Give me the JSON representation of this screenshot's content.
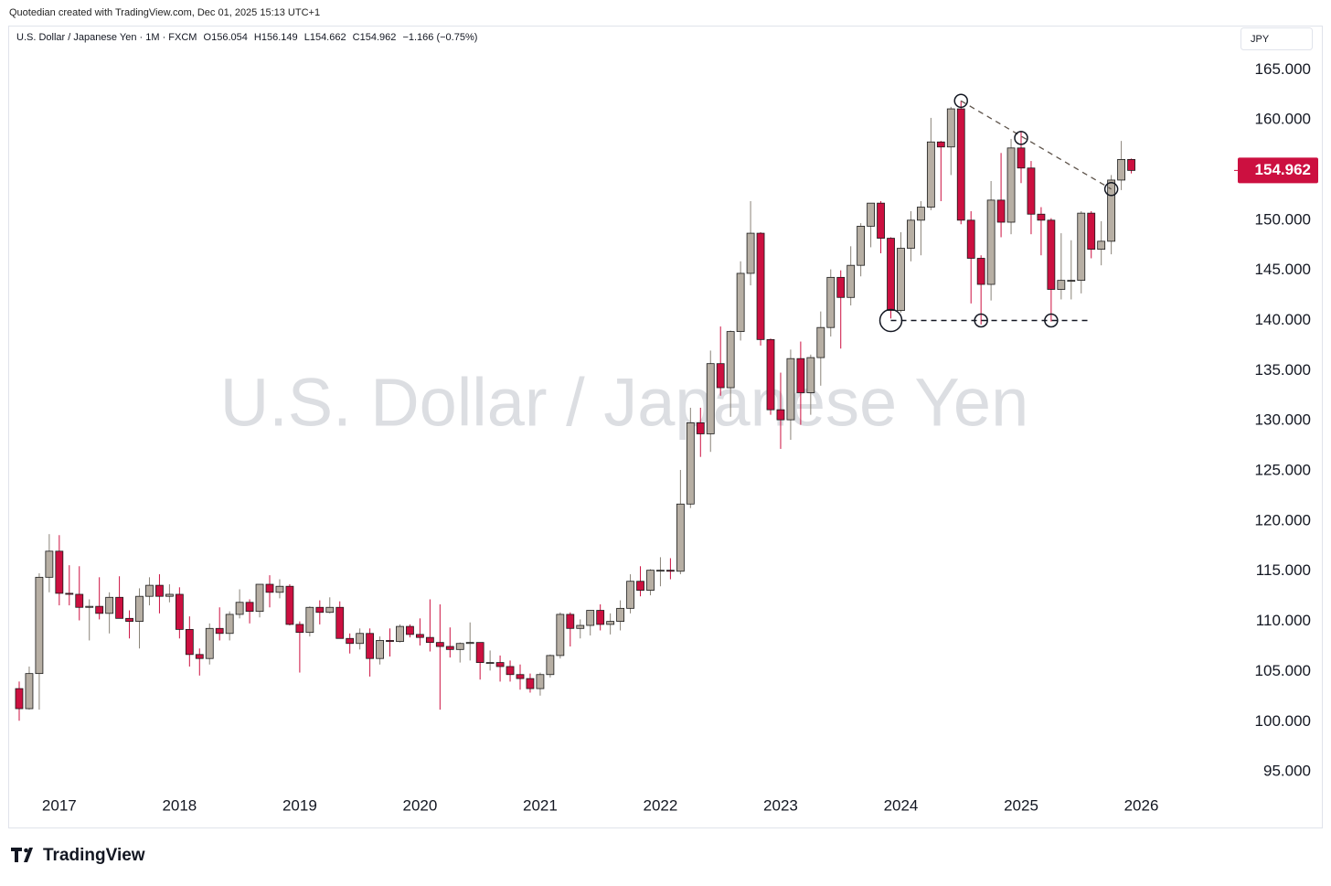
{
  "header": {
    "credit": "Quotedian created with TradingView.com, Dec 01, 2025 15:13 UTC+1",
    "symbol": "U.S. Dollar / Japanese Yen · 1M · FXCM",
    "ohlc_labels": [
      "O",
      "H",
      "L",
      "C"
    ],
    "change": "−1.166 (−0.75%)"
  },
  "chart_data": {
    "type": "candlestick",
    "watermark": "U.S. Dollar / Japanese Yen",
    "currency": "JPY",
    "x": [
      "2016-09",
      "2016-10",
      "2016-11",
      "2016-12",
      "2017-01",
      "2017-02",
      "2017-03",
      "2017-04",
      "2017-05",
      "2017-06",
      "2017-07",
      "2017-08",
      "2017-09",
      "2017-10",
      "2017-11",
      "2017-12",
      "2018-01",
      "2018-02",
      "2018-03",
      "2018-04",
      "2018-05",
      "2018-06",
      "2018-07",
      "2018-08",
      "2018-09",
      "2018-10",
      "2018-11",
      "2018-12",
      "2019-01",
      "2019-02",
      "2019-03",
      "2019-04",
      "2019-05",
      "2019-06",
      "2019-07",
      "2019-08",
      "2019-09",
      "2019-10",
      "2019-11",
      "2019-12",
      "2020-01",
      "2020-02",
      "2020-03",
      "2020-04",
      "2020-05",
      "2020-06",
      "2020-07",
      "2020-08",
      "2020-09",
      "2020-10",
      "2020-11",
      "2020-12",
      "2021-01",
      "2021-02",
      "2021-03",
      "2021-04",
      "2021-05",
      "2021-06",
      "2021-07",
      "2021-08",
      "2021-09",
      "2021-10",
      "2021-11",
      "2021-12",
      "2022-01",
      "2022-02",
      "2022-03",
      "2022-04",
      "2022-05",
      "2022-06",
      "2022-07",
      "2022-08",
      "2022-09",
      "2022-10",
      "2022-11",
      "2022-12",
      "2023-01",
      "2023-02",
      "2023-03",
      "2023-04",
      "2023-05",
      "2023-06",
      "2023-07",
      "2023-08",
      "2023-09",
      "2023-10",
      "2023-11",
      "2023-12",
      "2024-01",
      "2024-02",
      "2024-03",
      "2024-04",
      "2024-05",
      "2024-06",
      "2024-07",
      "2024-08",
      "2024-09",
      "2024-10",
      "2024-11",
      "2024-12",
      "2025-01",
      "2025-02",
      "2025-03",
      "2025-04",
      "2025-05",
      "2025-06",
      "2025-07",
      "2025-08",
      "2025-09",
      "2025-10",
      "2025-11",
      "2025-12"
    ],
    "open": [
      103.3,
      101.3,
      104.8,
      114.4,
      117.0,
      112.8,
      112.7,
      111.4,
      111.5,
      110.8,
      112.4,
      110.3,
      110.0,
      112.5,
      113.6,
      112.5,
      112.7,
      109.2,
      106.7,
      106.3,
      109.3,
      108.8,
      110.7,
      111.9,
      111.0,
      113.7,
      112.9,
      113.5,
      109.7,
      108.9,
      111.4,
      110.9,
      111.4,
      108.3,
      107.8,
      108.8,
      106.3,
      108.1,
      108.0,
      109.5,
      108.7,
      108.4,
      107.9,
      107.5,
      107.2,
      107.8,
      107.9,
      105.9,
      105.9,
      105.5,
      104.7,
      104.3,
      103.3,
      104.7,
      106.6,
      110.7,
      109.3,
      109.6,
      111.1,
      109.7,
      110.0,
      111.3,
      114.0,
      113.1,
      115.1,
      115.1,
      115.0,
      121.7,
      129.8,
      128.7,
      135.7,
      133.3,
      138.9,
      144.7,
      148.7,
      138.1,
      131.1,
      130.1,
      136.2,
      132.8,
      136.3,
      139.3,
      144.3,
      142.3,
      145.5,
      149.4,
      151.7,
      148.2,
      141.0,
      147.2,
      150.0,
      151.3,
      157.8,
      157.3,
      161.1,
      150.0,
      146.2,
      143.6,
      152.0,
      149.8,
      157.2,
      155.2,
      150.6,
      150.0,
      143.1,
      144.0,
      144.0,
      150.7,
      147.1,
      147.9,
      154.0,
      156.054
    ],
    "high": [
      104.0,
      105.5,
      114.8,
      118.7,
      118.6,
      115.6,
      115.5,
      112.2,
      114.4,
      112.9,
      114.5,
      111.1,
      113.3,
      114.4,
      114.7,
      113.7,
      113.4,
      110.5,
      107.3,
      109.8,
      111.4,
      111.0,
      113.2,
      112.2,
      113.7,
      114.6,
      114.2,
      113.7,
      110.0,
      111.5,
      112.1,
      112.4,
      112.0,
      108.8,
      109.3,
      109.3,
      108.5,
      109.3,
      109.7,
      109.7,
      110.3,
      112.2,
      111.7,
      109.4,
      107.9,
      109.9,
      107.8,
      107.1,
      106.6,
      106.1,
      105.7,
      104.8,
      104.9,
      106.7,
      110.9,
      110.9,
      110.2,
      111.1,
      111.7,
      110.8,
      112.1,
      114.7,
      115.5,
      115.2,
      116.4,
      116.3,
      125.1,
      131.3,
      131.3,
      137.0,
      139.4,
      139.0,
      145.9,
      151.9,
      148.8,
      138.2,
      134.8,
      137.1,
      137.9,
      136.6,
      140.9,
      145.1,
      145.0,
      147.4,
      149.7,
      151.7,
      151.9,
      148.3,
      148.8,
      150.9,
      151.9,
      160.2,
      157.9,
      161.3,
      161.9,
      150.9,
      146.5,
      153.9,
      156.7,
      158.1,
      158.9,
      155.9,
      151.3,
      150.2,
      148.7,
      148.0,
      150.9,
      150.9,
      149.9,
      154.5,
      157.9,
      156.149
    ],
    "low": [
      100.1,
      101.2,
      101.2,
      112.9,
      111.6,
      111.6,
      110.1,
      108.1,
      110.2,
      108.8,
      110.6,
      108.3,
      107.3,
      111.6,
      110.8,
      111.9,
      108.3,
      105.5,
      104.6,
      105.7,
      108.1,
      108.1,
      110.3,
      109.8,
      110.4,
      111.4,
      112.3,
      109.6,
      104.9,
      108.5,
      109.7,
      110.8,
      108.3,
      106.8,
      107.2,
      104.5,
      105.7,
      106.5,
      107.9,
      108.4,
      107.6,
      107.0,
      101.2,
      106.4,
      105.9,
      106.1,
      104.2,
      105.1,
      104.0,
      104.0,
      103.2,
      102.9,
      102.6,
      104.4,
      106.3,
      107.5,
      108.3,
      108.6,
      109.1,
      108.7,
      109.1,
      110.8,
      112.5,
      112.6,
      113.5,
      114.2,
      114.7,
      121.3,
      126.4,
      126.9,
      132.5,
      130.4,
      138.0,
      143.5,
      137.5,
      130.6,
      127.2,
      128.1,
      129.6,
      130.6,
      133.5,
      138.4,
      137.2,
      141.5,
      144.4,
      147.3,
      146.7,
      140.2,
      140.8,
      145.9,
      146.5,
      151.0,
      151.9,
      154.5,
      149.6,
      141.7,
      139.6,
      142.0,
      148.3,
      148.6,
      153.7,
      148.6,
      146.5,
      139.9,
      142.1,
      142.1,
      142.7,
      146.2,
      145.5,
      146.6,
      153.0,
      154.662
    ],
    "close": [
      101.3,
      104.8,
      114.4,
      117.0,
      112.8,
      112.7,
      111.4,
      111.5,
      110.8,
      112.4,
      110.3,
      110.0,
      112.5,
      113.6,
      112.5,
      112.7,
      109.2,
      106.7,
      106.3,
      109.3,
      108.8,
      110.7,
      111.9,
      111.0,
      113.7,
      112.9,
      113.5,
      109.7,
      108.9,
      111.4,
      110.9,
      111.4,
      108.3,
      107.8,
      108.8,
      106.3,
      108.1,
      108.0,
      109.5,
      108.7,
      108.4,
      107.9,
      107.5,
      107.2,
      107.8,
      107.9,
      105.9,
      105.9,
      105.5,
      104.7,
      104.3,
      103.3,
      104.7,
      106.6,
      110.7,
      109.3,
      109.6,
      111.1,
      109.7,
      110.0,
      111.3,
      114.0,
      113.1,
      115.1,
      115.1,
      115.0,
      121.7,
      129.8,
      128.7,
      135.7,
      133.3,
      138.9,
      144.7,
      148.7,
      138.1,
      131.1,
      130.1,
      136.2,
      132.8,
      136.3,
      139.3,
      144.3,
      142.3,
      145.5,
      149.4,
      151.7,
      148.2,
      141.0,
      147.2,
      150.0,
      151.3,
      157.8,
      157.3,
      161.1,
      150.0,
      146.2,
      143.6,
      152.0,
      149.8,
      157.2,
      155.2,
      150.6,
      150.0,
      143.1,
      144.0,
      144.0,
      150.7,
      147.1,
      147.9,
      154.0,
      156.054,
      154.962
    ],
    "up_color": "#b7afa4",
    "down_color": "#cc1040",
    "ylim": [
      93.1,
      169.4
    ],
    "yticks": [
      {
        "value": 95,
        "label": "95.000"
      },
      {
        "value": 100,
        "label": "100.000"
      },
      {
        "value": 105,
        "label": "105.000"
      },
      {
        "value": 110,
        "label": "110.000"
      },
      {
        "value": 115,
        "label": "115.000"
      },
      {
        "value": 120,
        "label": "120.000"
      },
      {
        "value": 125,
        "label": "125.000"
      },
      {
        "value": 130,
        "label": "130.000"
      },
      {
        "value": 135,
        "label": "135.000"
      },
      {
        "value": 140,
        "label": "140.000"
      },
      {
        "value": 145,
        "label": "145.000"
      },
      {
        "value": 150,
        "label": "150.000"
      },
      {
        "value": 155,
        "label": "155.000"
      },
      {
        "value": 160,
        "label": "160.000"
      },
      {
        "value": 165,
        "label": "165.000"
      }
    ],
    "xticks": [
      {
        "value": "2017-01",
        "label": "2017"
      },
      {
        "value": "2018-01",
        "label": "2018"
      },
      {
        "value": "2019-01",
        "label": "2019"
      },
      {
        "value": "2020-01",
        "label": "2020"
      },
      {
        "value": "2021-01",
        "label": "2021"
      },
      {
        "value": "2022-01",
        "label": "2022"
      },
      {
        "value": "2023-01",
        "label": "2023"
      },
      {
        "value": "2024-01",
        "label": "2024"
      },
      {
        "value": "2025-01",
        "label": "2025"
      },
      {
        "value": "2026-01",
        "label": "2026"
      }
    ],
    "support": {
      "from": "2023-12",
      "to": "2025-08",
      "y": 140
    },
    "trendline": [
      {
        "x": "2024-07",
        "y": 161.9
      },
      {
        "x": "2025-10",
        "y": 153.1
      }
    ],
    "markers": [
      {
        "x": "2024-07",
        "y": 161.9
      },
      {
        "x": "2025-01",
        "y": 158.2
      },
      {
        "x": "2025-10",
        "y": 153.1
      },
      {
        "x": "2023-12",
        "y": 140
      },
      {
        "x": "2024-09",
        "y": 140
      },
      {
        "x": "2025-04",
        "y": 140
      }
    ]
  },
  "footer": {
    "brand": "TradingView"
  }
}
